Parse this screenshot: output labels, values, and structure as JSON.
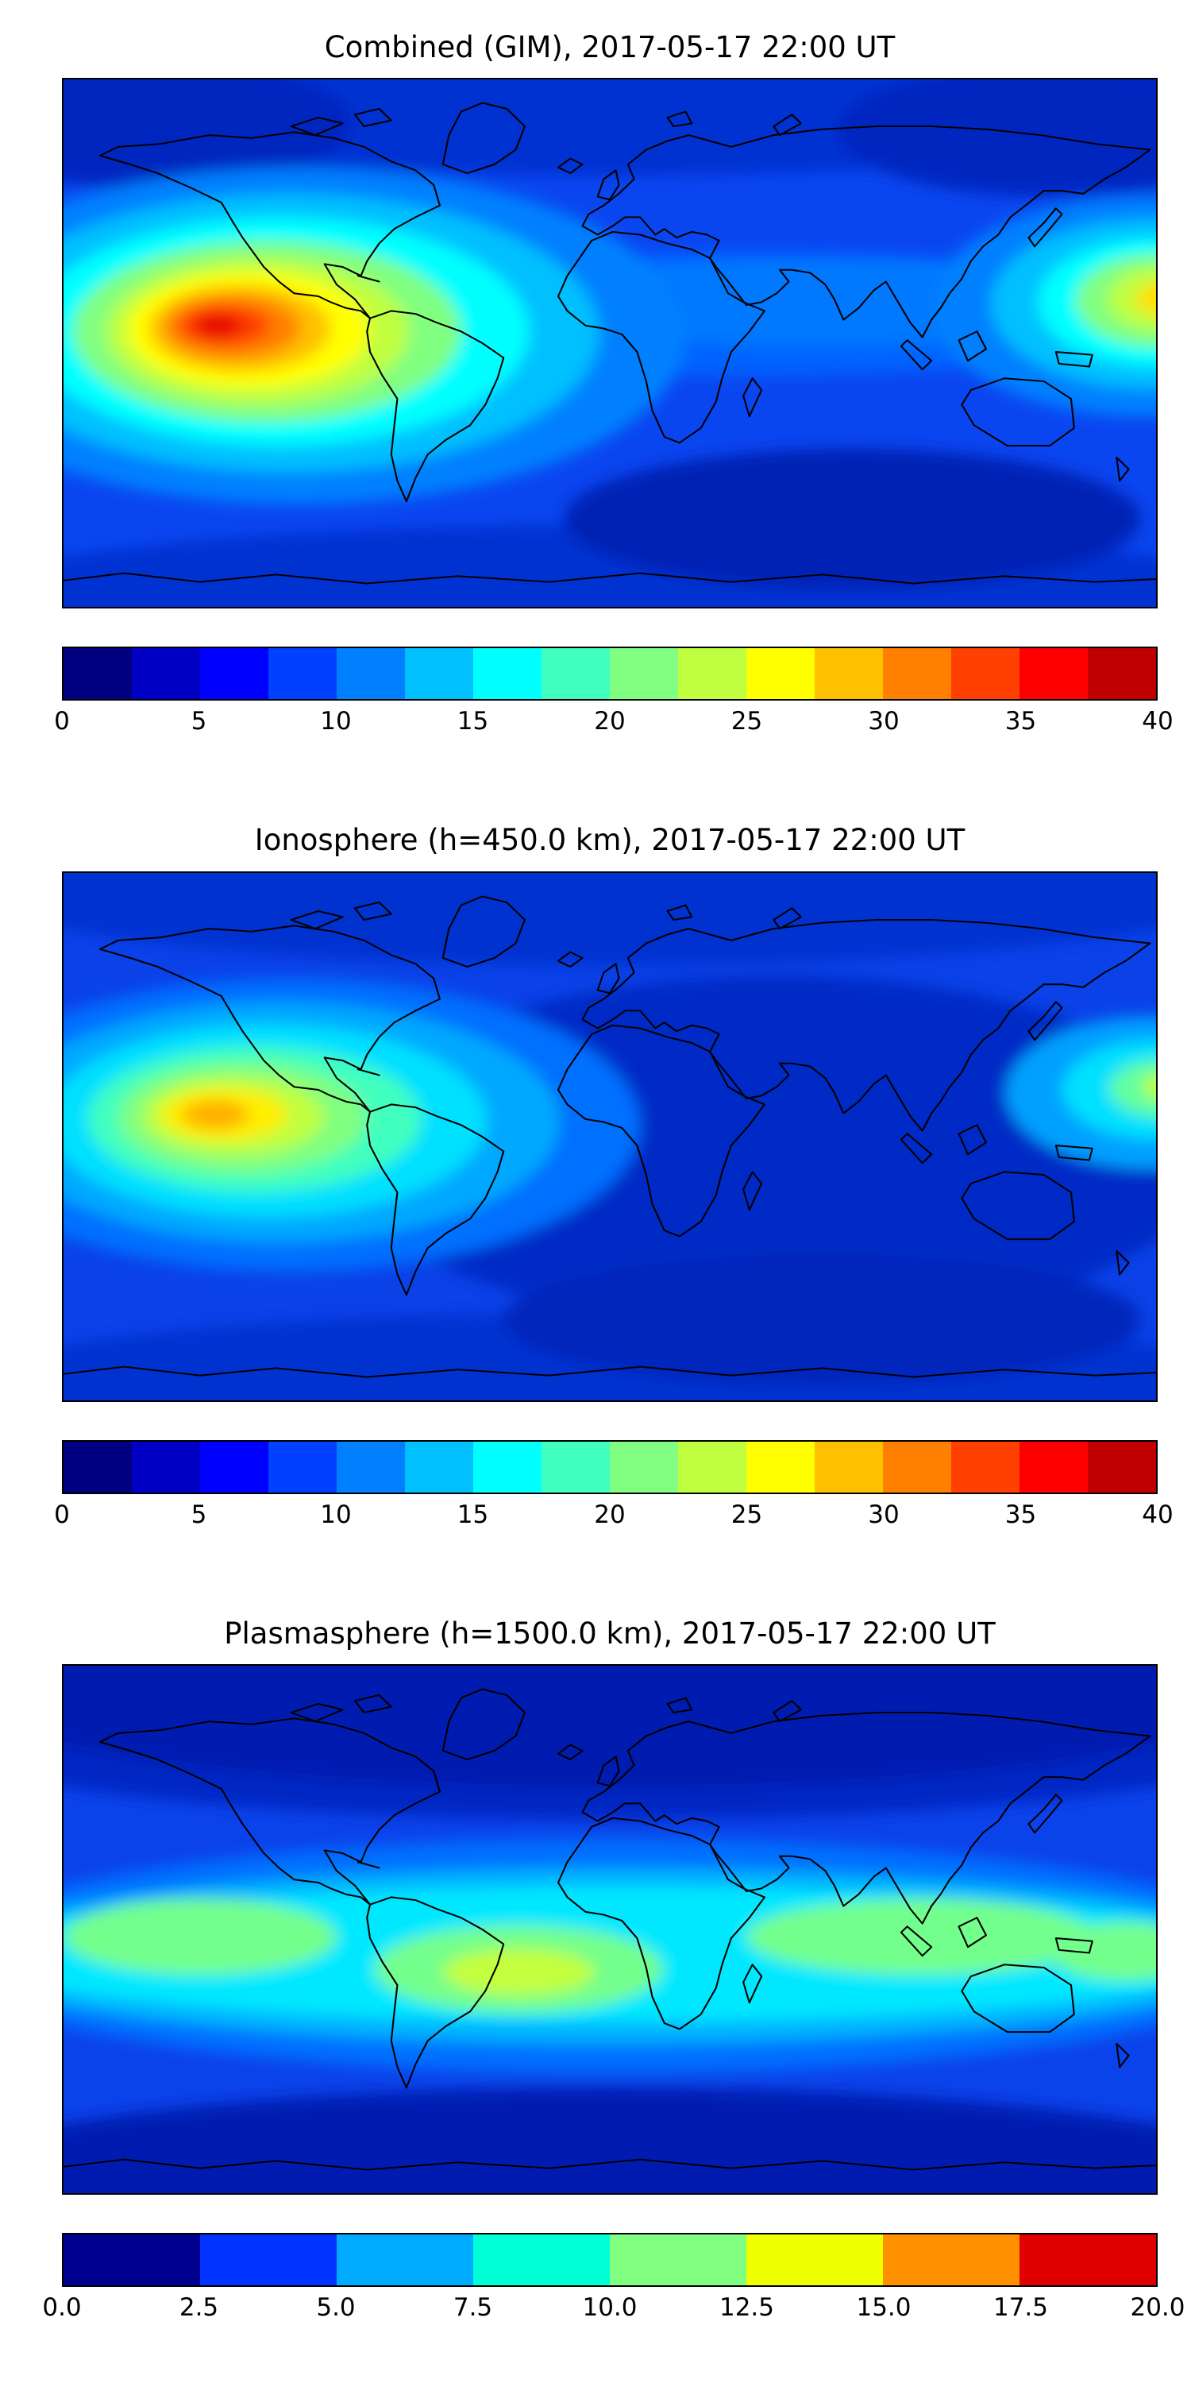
{
  "figure": {
    "background": "#ffffff",
    "panels": [
      {
        "id": "combined",
        "title": "Combined (GIM), 2017-05-17 22:00 UT",
        "colorbar": {
          "range": [
            0,
            40
          ],
          "tick_labels": [
            "0",
            "5",
            "10",
            "15",
            "20",
            "25",
            "30",
            "35",
            "40"
          ],
          "segment_colors": [
            "#000080",
            "#0000c4",
            "#0000ff",
            "#0040ff",
            "#0080ff",
            "#00c0ff",
            "#00ffff",
            "#40ffbf",
            "#80ff80",
            "#bfff40",
            "#ffff00",
            "#ffc000",
            "#ff8000",
            "#ff4000",
            "#ff0000",
            "#c00000"
          ]
        }
      },
      {
        "id": "ionosphere",
        "title": "Ionosphere (h=450.0 km), 2017-05-17 22:00 UT",
        "colorbar": {
          "range": [
            0,
            40
          ],
          "tick_labels": [
            "0",
            "5",
            "10",
            "15",
            "20",
            "25",
            "30",
            "35",
            "40"
          ],
          "segment_colors": [
            "#000080",
            "#0000c4",
            "#0000ff",
            "#0040ff",
            "#0080ff",
            "#00c0ff",
            "#00ffff",
            "#40ffbf",
            "#80ff80",
            "#bfff40",
            "#ffff00",
            "#ffc000",
            "#ff8000",
            "#ff4000",
            "#ff0000",
            "#c00000"
          ]
        }
      },
      {
        "id": "plasmasphere",
        "title": "Plasmasphere (h=1500.0 km), 2017-05-17 22:00 UT",
        "colorbar": {
          "range": [
            0,
            20
          ],
          "tick_labels": [
            "0.0",
            "2.5",
            "5.0",
            "7.5",
            "10.0",
            "12.5",
            "15.0",
            "17.5",
            "20.0"
          ],
          "segment_colors": [
            "#00008f",
            "#0033ff",
            "#00aaff",
            "#00ffd5",
            "#80ff80",
            "#eeff00",
            "#ff9100",
            "#e00000"
          ]
        }
      }
    ]
  },
  "chart_data": [
    {
      "type": "heatmap",
      "title": "Combined (GIM), 2017-05-17 22:00 UT",
      "colormap": "jet",
      "projection": "equirectangular world map, lon -180..180, lat -90..90, black coastlines",
      "value_range": [
        0,
        40
      ],
      "contour_interval": 2.5,
      "colorbar_ticks": [
        0,
        5,
        10,
        15,
        20,
        25,
        30,
        35,
        40
      ],
      "colorbar_orientation": "horizontal",
      "features": [
        {
          "name": "primary maximum over eastern equatorial Pacific / north of South America",
          "approx_lon": -130,
          "approx_lat": 5,
          "approx_peak_value": 38
        },
        {
          "name": "secondary enhancement at eastern map edge (western Pacific)",
          "approx_lon": 178,
          "approx_lat": 13,
          "approx_peak_value": 26
        },
        {
          "name": "southern high-latitude minimum band",
          "approx_lon": 90,
          "approx_lat": -55,
          "approx_value": 3
        },
        {
          "name": "background mid/high-latitude value",
          "approx_value": 5
        }
      ]
    },
    {
      "type": "heatmap",
      "title": "Ionosphere (h=450.0 km), 2017-05-17 22:00 UT",
      "colormap": "jet",
      "projection": "equirectangular world map, lon -180..180, lat -90..90, black coastlines",
      "value_range": [
        0,
        40
      ],
      "contour_interval": 2.5,
      "colorbar_ticks": [
        0,
        5,
        10,
        15,
        20,
        25,
        30,
        35,
        40
      ],
      "colorbar_orientation": "horizontal",
      "features": [
        {
          "name": "primary maximum over eastern equatorial Pacific / north of South America",
          "approx_lon": -130,
          "approx_lat": 5,
          "approx_peak_value": 28
        },
        {
          "name": "weak enhancement at eastern map edge",
          "approx_lon": 179,
          "approx_lat": 15,
          "approx_peak_value": 15
        },
        {
          "name": "broad minimum over Africa / Asia / Indian Ocean",
          "approx_lon": 55,
          "approx_lat": -5,
          "approx_value": 4
        },
        {
          "name": "background mid/high-latitude value",
          "approx_value": 5
        }
      ]
    },
    {
      "type": "heatmap",
      "title": "Plasmasphere (h=1500.0 km), 2017-05-17 22:00 UT",
      "colormap": "jet",
      "projection": "equirectangular world map, lon -180..180, lat -90..90, black coastlines",
      "value_range": [
        0,
        20
      ],
      "contour_interval": 2.5,
      "colorbar_ticks": [
        0.0,
        2.5,
        5.0,
        7.5,
        10.0,
        12.5,
        15.0,
        17.5,
        20.0
      ],
      "colorbar_orientation": "horizontal",
      "features": [
        {
          "name": "wavy equatorial band of enhanced values across all longitudes",
          "approx_lat_range": [
            -25,
            15
          ],
          "approx_value": 7.5
        },
        {
          "name": "band maximum over central South America",
          "approx_lon": -30,
          "approx_lat": -15,
          "approx_peak_value": 12
        },
        {
          "name": "green band segment over eastern Pacific",
          "approx_lon": -135,
          "approx_lat": 0,
          "approx_value": 10
        },
        {
          "name": "green band segment over Indian Ocean / southeast Asia",
          "approx_lon": 100,
          "approx_lat": 0,
          "approx_value": 10
        },
        {
          "name": "dark high-latitude minima at top and bottom of map",
          "approx_value": 1.5
        }
      ]
    }
  ]
}
